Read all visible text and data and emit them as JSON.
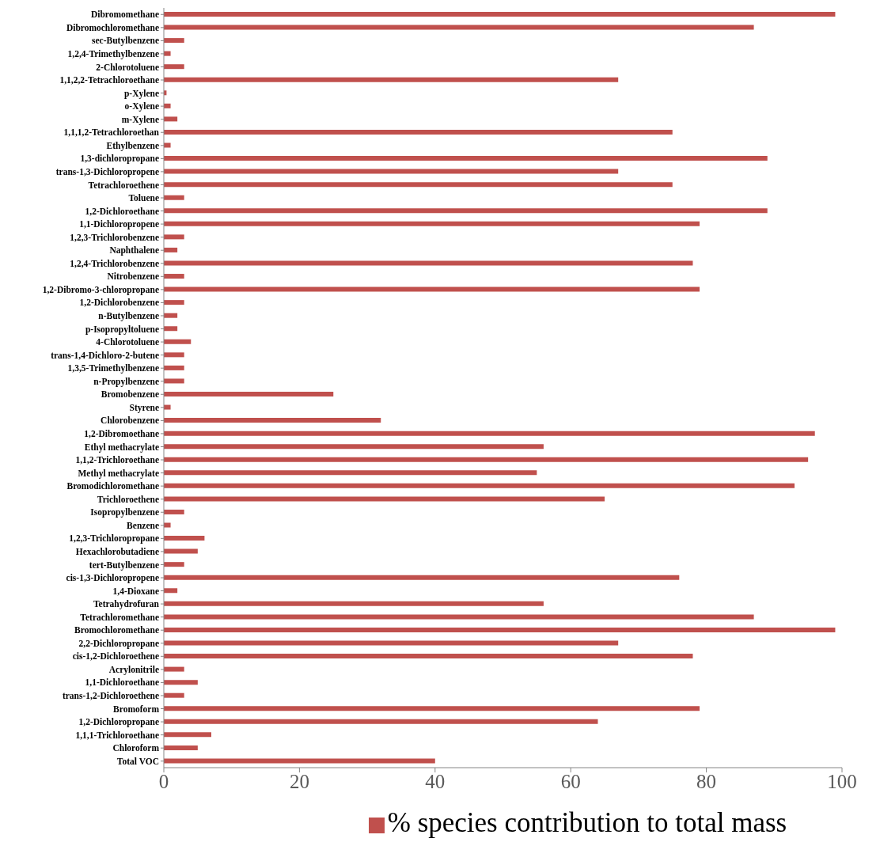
{
  "chart_data": {
    "type": "bar",
    "orientation": "horizontal",
    "legend": "bottom",
    "categories": [
      "Dibromomethane",
      "Dibromochloromethane",
      "sec-Butylbenzene",
      "1,2,4-Trimethylbenzene",
      "2-Chlorotoluene",
      "1,1,2,2-Tetrachloroethane",
      "p-Xylene",
      "o-Xylene",
      "m-Xylene",
      "1,1,1,2-Tetrachloroethan",
      "Ethylbenzene",
      "1,3-dichloropropane",
      "trans-1,3-Dichloropropene",
      "Tetrachloroethene",
      "Toluene",
      "1,2-Dichloroethane",
      "1,1-Dichloropropene",
      "1,2,3-Trichlorobenzene",
      "Naphthalene",
      "1,2,4-Trichlorobenzene",
      "Nitrobenzene",
      "1,2-Dibromo-3-chloropropane",
      "1,2-Dichlorobenzene",
      "n-Butylbenzene",
      "p-Isopropyltoluene",
      "4-Chlorotoluene",
      "trans-1,4-Dichloro-2-butene",
      "1,3,5-Trimethylbenzene",
      "n-Propylbenzene",
      "Bromobenzene",
      "Styrene",
      "Chlorobenzene",
      "1,2-Dibromoethane",
      "Ethyl methacrylate",
      "1,1,2-Trichloroethane",
      "Methyl methacrylate",
      "Bromodichloromethane",
      "Trichloroethene",
      "Isopropylbenzene",
      "Benzene",
      "1,2,3-Trichloropropane",
      "Hexachlorobutadiene",
      "tert-Butylbenzene",
      "cis-1,3-Dichloropropene",
      "1,4-Dioxane",
      "Tetrahydrofuran",
      "Tetrachloromethane",
      "Bromochloromethane",
      "2,2-Dichloropropane",
      "cis-1,2-Dichloroethene",
      "Acrylonitrile",
      "1,1-Dichloroethane",
      "trans-1,2-Dichloroethene",
      "Bromoform",
      "1,2-Dichloropropane",
      "1,1,1-Trichloroethane",
      "Chloroform",
      "Total VOC"
    ],
    "series": [
      {
        "name": "% species contribution to total mass",
        "color": "#c0504d",
        "values": [
          99,
          87,
          3,
          1,
          3,
          67,
          0.4,
          1,
          2,
          75,
          1,
          89,
          67,
          75,
          3,
          89,
          79,
          3,
          2,
          78,
          3,
          79,
          3,
          2,
          2,
          4,
          3,
          3,
          3,
          25,
          1,
          32,
          96,
          56,
          95,
          55,
          93,
          65,
          3,
          1,
          6,
          5,
          3,
          76,
          2,
          56,
          87,
          99,
          67,
          78,
          3,
          5,
          3,
          79,
          64,
          7,
          5,
          40
        ]
      }
    ],
    "xlim": [
      0,
      100
    ],
    "xticks": [
      0,
      20,
      40,
      60,
      80,
      100
    ]
  }
}
